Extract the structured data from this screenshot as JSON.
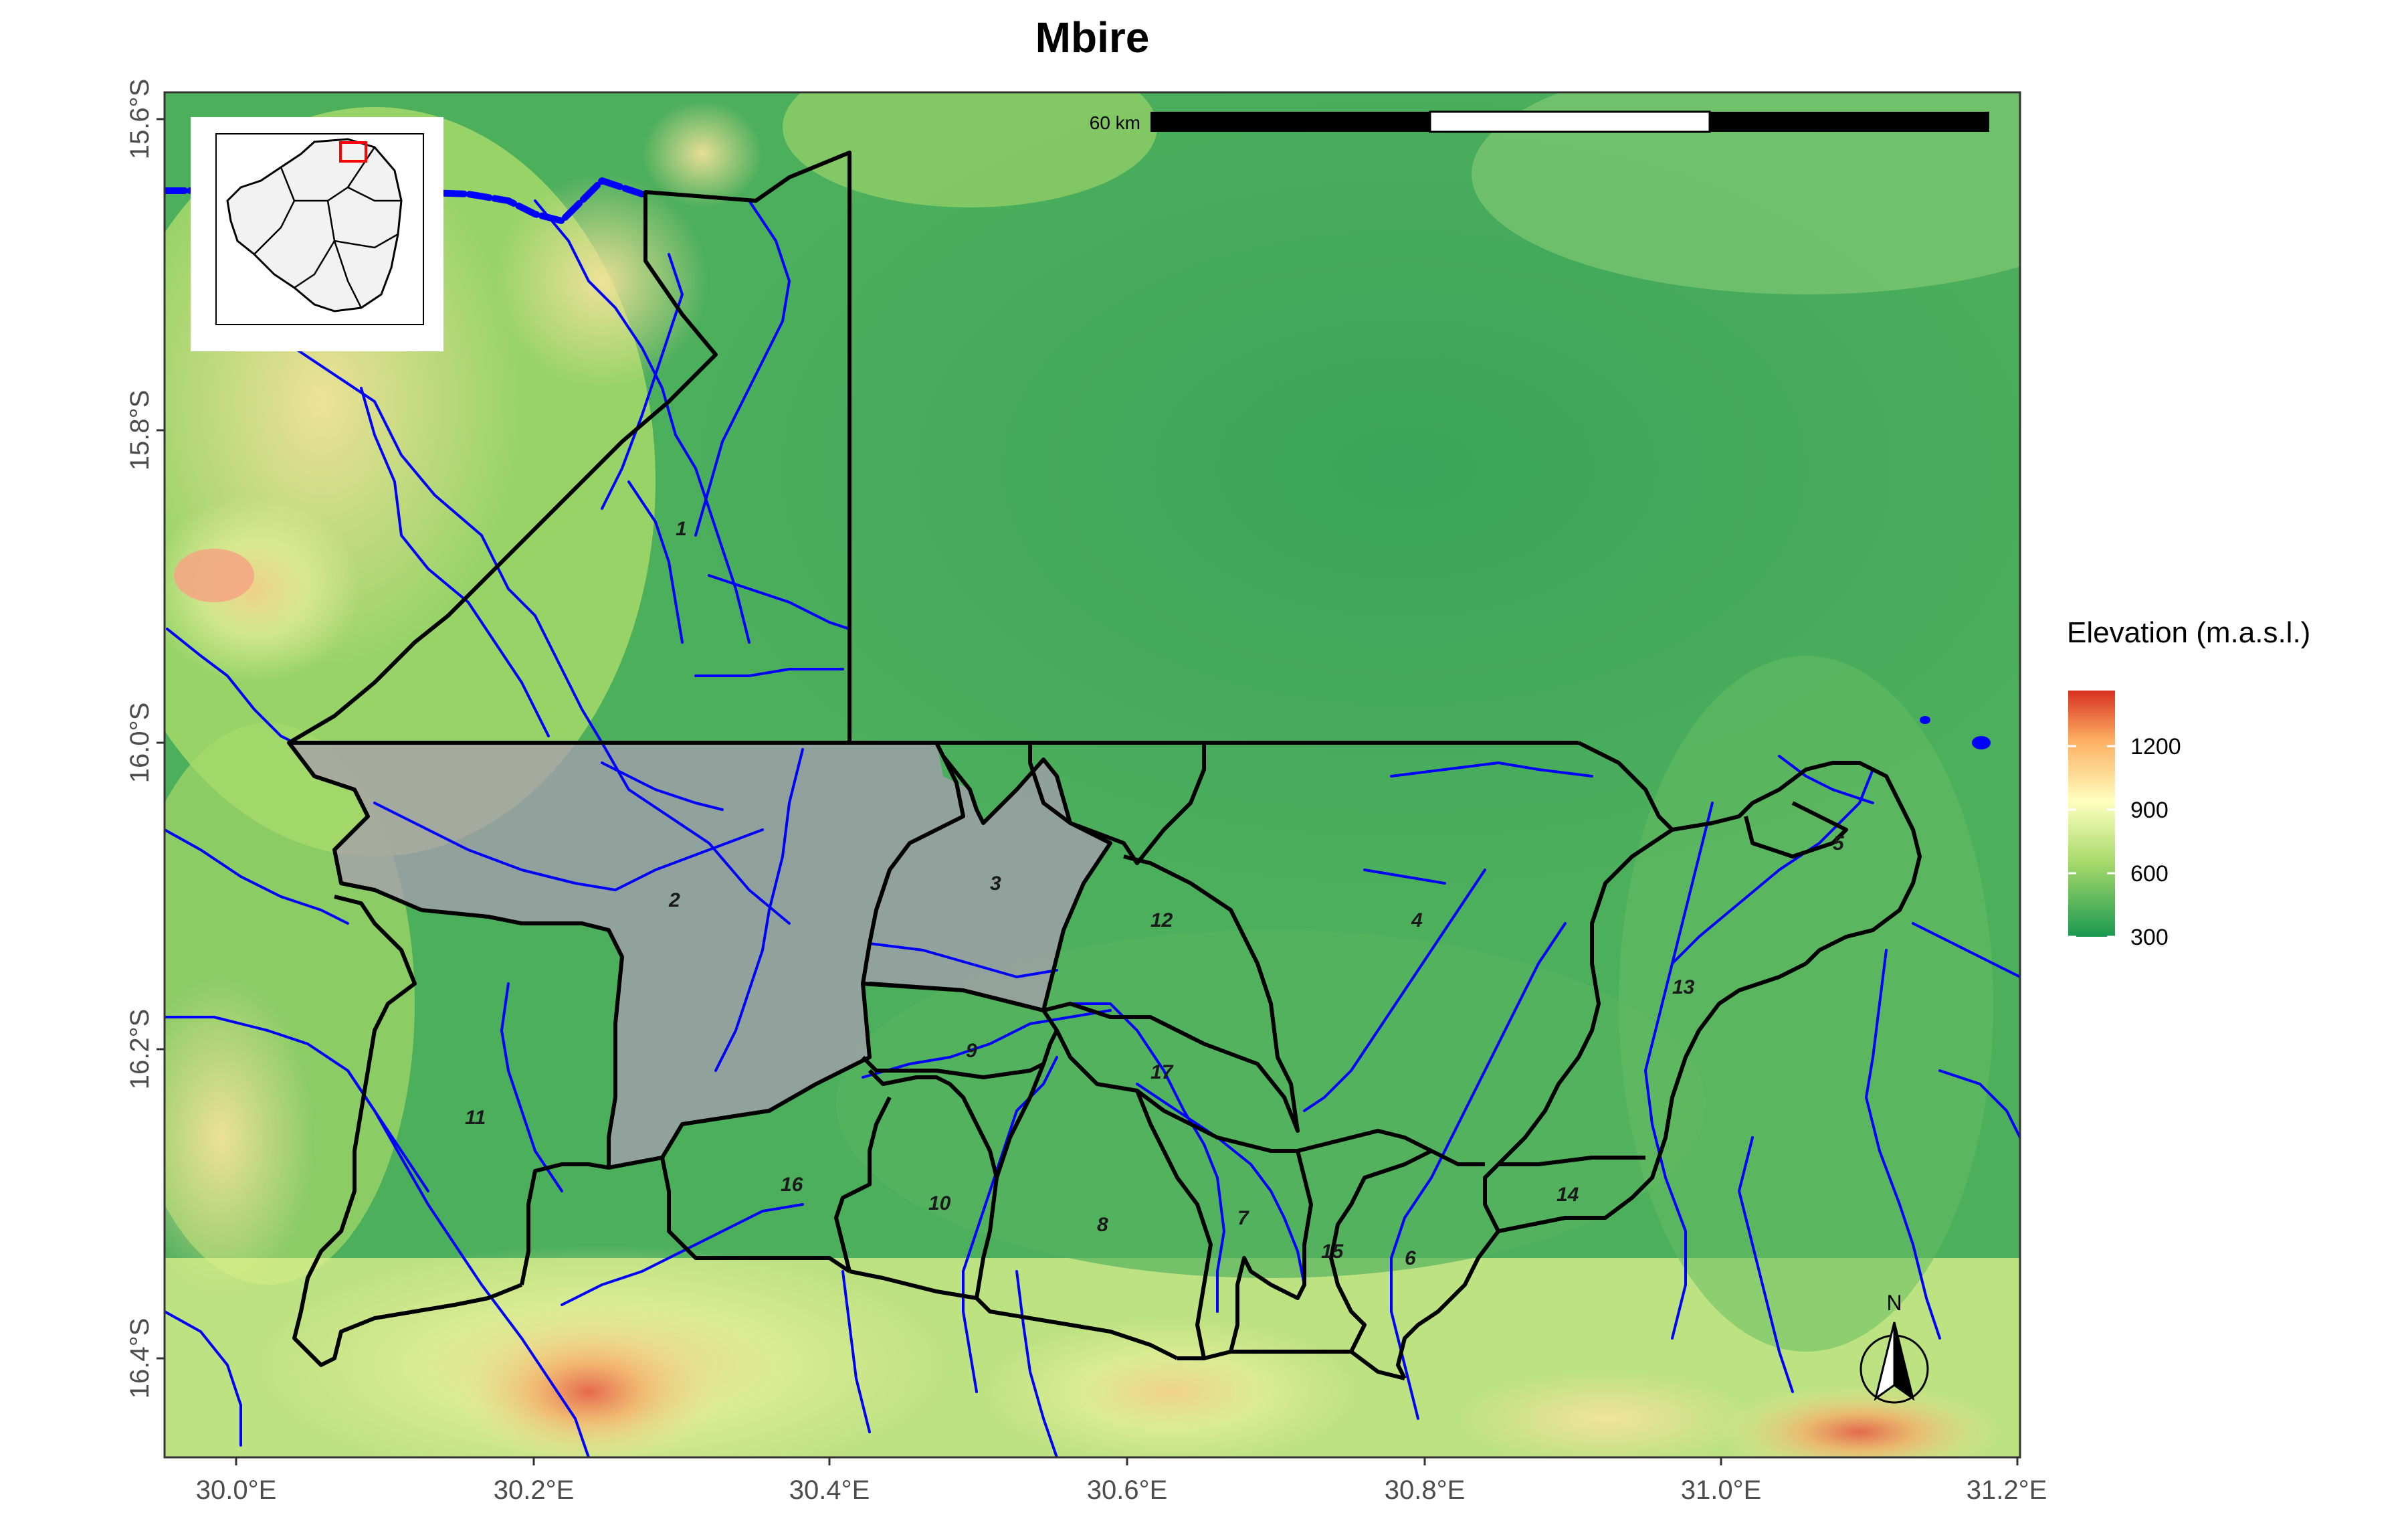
{
  "map": {
    "title": "Mbire",
    "x_ticks": [
      "30.0°E",
      "30.2°E",
      "30.4°E",
      "30.6°E",
      "30.8°E",
      "31.0°E",
      "31.2°E"
    ],
    "y_ticks": [
      "15.6°S",
      "15.8°S",
      "16.0°S",
      "16.2°S",
      "16.4°S"
    ],
    "wards": [
      "1",
      "2",
      "3",
      "4",
      "5",
      "6",
      "7",
      "8",
      "9",
      "10",
      "11",
      "12",
      "13",
      "14",
      "15",
      "16",
      "17"
    ],
    "highlighted_wards": [
      "2",
      "3"
    ],
    "scale_bar_label": "60 km",
    "north_label": "N",
    "legend": {
      "title": "Elevation (m.a.s.l.)",
      "labels": [
        "1200",
        "900",
        "600",
        "300"
      ],
      "colors": [
        "#d7301f",
        "#fdae61",
        "#ffffbf",
        "#a6d96a",
        "#1a9850"
      ]
    },
    "colors": {
      "river": "#0000ff",
      "boundary": "#000000",
      "inset_highlight": "#ff0000",
      "district_fill": "#a89cb0"
    }
  }
}
